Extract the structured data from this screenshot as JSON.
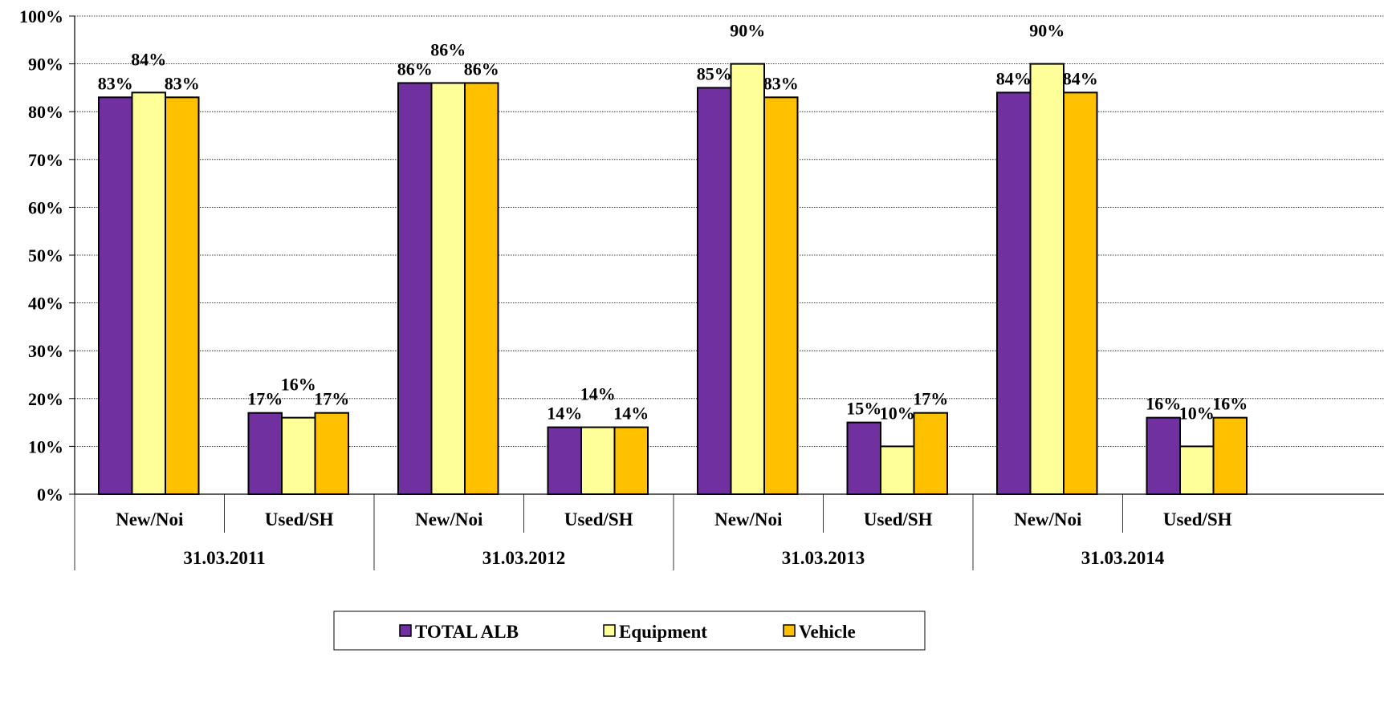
{
  "chart_data": {
    "type": "bar",
    "ylim": [
      0,
      1
    ],
    "y_ticks": [
      "0%",
      "10%",
      "20%",
      "30%",
      "40%",
      "50%",
      "60%",
      "70%",
      "80%",
      "90%",
      "100%"
    ],
    "grid": true,
    "legend_position": "bottom",
    "groups": [
      {
        "label": "31.03.2011",
        "subcategories": [
          "New/Noi",
          "Used/SH"
        ]
      },
      {
        "label": "31.03.2012",
        "subcategories": [
          "New/Noi",
          "Used/SH"
        ]
      },
      {
        "label": "31.03.2013",
        "subcategories": [
          "New/Noi",
          "Used/SH"
        ]
      },
      {
        "label": "31.03.2014",
        "subcategories": [
          "New/Noi",
          "Used/SH"
        ]
      }
    ],
    "series": [
      {
        "name": "TOTAL ALB",
        "color": "#7030A0",
        "values": [
          0.83,
          0.17,
          0.86,
          0.14,
          0.85,
          0.15,
          0.84,
          0.16
        ],
        "labels": [
          "83%",
          "17%",
          "86%",
          "14%",
          "85%",
          "15%",
          "84%",
          "16%"
        ]
      },
      {
        "name": "Equipment",
        "color": "#FFFF99",
        "values": [
          0.84,
          0.16,
          0.86,
          0.14,
          0.9,
          0.1,
          0.9,
          0.1
        ],
        "labels": [
          "84%",
          "16%",
          "86%",
          "14%",
          "90%",
          "10%",
          "90%",
          "10%"
        ]
      },
      {
        "name": "Vehicle",
        "color": "#FFC000",
        "values": [
          0.83,
          0.17,
          0.86,
          0.14,
          0.83,
          0.17,
          0.84,
          0.16
        ],
        "labels": [
          "83%",
          "17%",
          "86%",
          "14%",
          "83%",
          "17%",
          "84%",
          "16%"
        ]
      }
    ]
  }
}
